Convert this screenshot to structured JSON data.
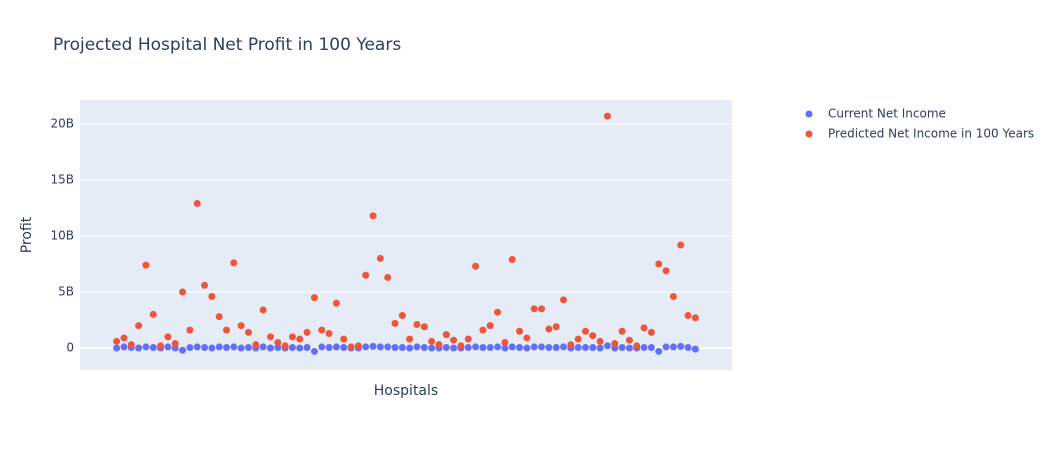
{
  "chart_data": {
    "type": "scatter",
    "title": "Projected Hospital Net Profit in 100 Years",
    "xlabel": "Hospitals",
    "ylabel": "Profit",
    "x": [
      0,
      1,
      2,
      3,
      4,
      5,
      6,
      7,
      8,
      9,
      10,
      11,
      12,
      13,
      14,
      15,
      16,
      17,
      18,
      19,
      20,
      21,
      22,
      23,
      24,
      25,
      26,
      27,
      28,
      29,
      30,
      31,
      32,
      33,
      34,
      35,
      36,
      37,
      38,
      39,
      40,
      41,
      42,
      43,
      44,
      45,
      46,
      47,
      48,
      49,
      50,
      51,
      52,
      53,
      54,
      55,
      56,
      57,
      58,
      59,
      60,
      61,
      62,
      63,
      64,
      65,
      66,
      67,
      68,
      69,
      70,
      71,
      72,
      73,
      74,
      75,
      76,
      77,
      78,
      79
    ],
    "series": [
      {
        "name": "Current Net Income",
        "color": "#636efa",
        "values": [
          0.0,
          0.1,
          0.05,
          0.0,
          0.1,
          0.05,
          0.0,
          0.1,
          0.0,
          -0.2,
          0.05,
          0.1,
          0.05,
          0.0,
          0.1,
          0.05,
          0.1,
          0.0,
          0.05,
          0.0,
          0.1,
          0.0,
          0.05,
          0.0,
          0.05,
          0.0,
          0.05,
          -0.3,
          0.1,
          0.05,
          0.1,
          0.05,
          0.0,
          0.0,
          0.1,
          0.15,
          0.1,
          0.1,
          0.05,
          0.05,
          0.0,
          0.1,
          0.05,
          0.0,
          0.0,
          0.05,
          0.0,
          0.0,
          0.05,
          0.1,
          0.05,
          0.05,
          0.1,
          0.0,
          0.1,
          0.05,
          0.0,
          0.1,
          0.1,
          0.05,
          0.05,
          0.1,
          0.0,
          0.05,
          0.05,
          0.05,
          0.0,
          0.2,
          0.0,
          0.05,
          0.0,
          0.0,
          0.05,
          0.05,
          -0.3,
          0.1,
          0.1,
          0.15,
          0.05,
          -0.1
        ]
      },
      {
        "name": "Predicted Net Income in 100 Years",
        "color": "#ef553b",
        "values": [
          0.6,
          0.9,
          0.3,
          2.0,
          7.4,
          3.0,
          0.2,
          1.0,
          0.4,
          5.0,
          1.6,
          12.9,
          5.6,
          4.6,
          2.8,
          1.6,
          7.6,
          2.0,
          1.4,
          0.3,
          3.4,
          1.0,
          0.5,
          0.2,
          1.0,
          0.8,
          1.4,
          4.5,
          1.6,
          1.3,
          4.0,
          0.8,
          0.1,
          0.2,
          6.5,
          11.8,
          8.0,
          6.3,
          2.2,
          2.9,
          0.8,
          2.1,
          1.9,
          0.6,
          0.3,
          1.2,
          0.7,
          0.2,
          0.8,
          7.3,
          1.6,
          2.0,
          3.2,
          0.5,
          7.9,
          1.5,
          0.9,
          3.5,
          3.5,
          1.7,
          1.9,
          4.3,
          0.3,
          0.8,
          1.5,
          1.1,
          0.6,
          20.7,
          0.4,
          1.5,
          0.7,
          0.2,
          1.8,
          1.4,
          7.5,
          6.9,
          4.6,
          9.2,
          2.9,
          2.7
        ]
      }
    ],
    "xlim": [
      -5,
      84
    ],
    "ylim": [
      -1.96,
      22.14
    ],
    "yticks": [
      0,
      {
        "value": 5,
        "label": "5B"
      },
      {
        "value": 10,
        "label": "10B"
      },
      {
        "value": 15,
        "label": "15B"
      },
      {
        "value": 20,
        "label": "20B"
      }
    ],
    "grid": true,
    "legend": "right"
  }
}
